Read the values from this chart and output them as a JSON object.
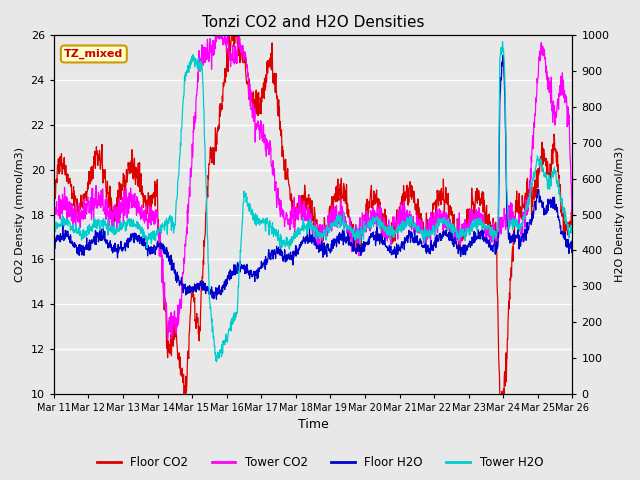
{
  "title": "Tonzi CO2 and H2O Densities",
  "xlabel": "Time",
  "ylabel_left": "CO2 Density (mmol/m3)",
  "ylabel_right": "H2O Density (mmol/m3)",
  "annotation": "TZ_mixed",
  "annotation_color": "#cc0000",
  "annotation_bg": "#ffffcc",
  "annotation_edge": "#cc9900",
  "x_tick_labels": [
    "Mar 11",
    "Mar 12",
    "Mar 13",
    "Mar 14",
    "Mar 15",
    "Mar 16",
    "Mar 17",
    "Mar 18",
    "Mar 19",
    "Mar 20",
    "Mar 21",
    "Mar 22",
    "Mar 23",
    "Mar 24",
    "Mar 25",
    "Mar 26"
  ],
  "ylim_left": [
    10,
    26
  ],
  "ylim_right": [
    0,
    1000
  ],
  "yticks_left": [
    10,
    12,
    14,
    16,
    18,
    20,
    22,
    24,
    26
  ],
  "yticks_right": [
    0,
    100,
    200,
    300,
    400,
    500,
    600,
    700,
    800,
    900,
    1000
  ],
  "colors": {
    "floor_co2": "#dd0000",
    "tower_co2": "#ff00ff",
    "floor_h2o": "#0000cc",
    "tower_h2o": "#00cccc"
  },
  "legend_labels": [
    "Floor CO2",
    "Tower CO2",
    "Floor H2O",
    "Tower H2O"
  ],
  "bg_color": "#e8e8e8",
  "grid_color": "#ffffff",
  "n_points": 1500
}
